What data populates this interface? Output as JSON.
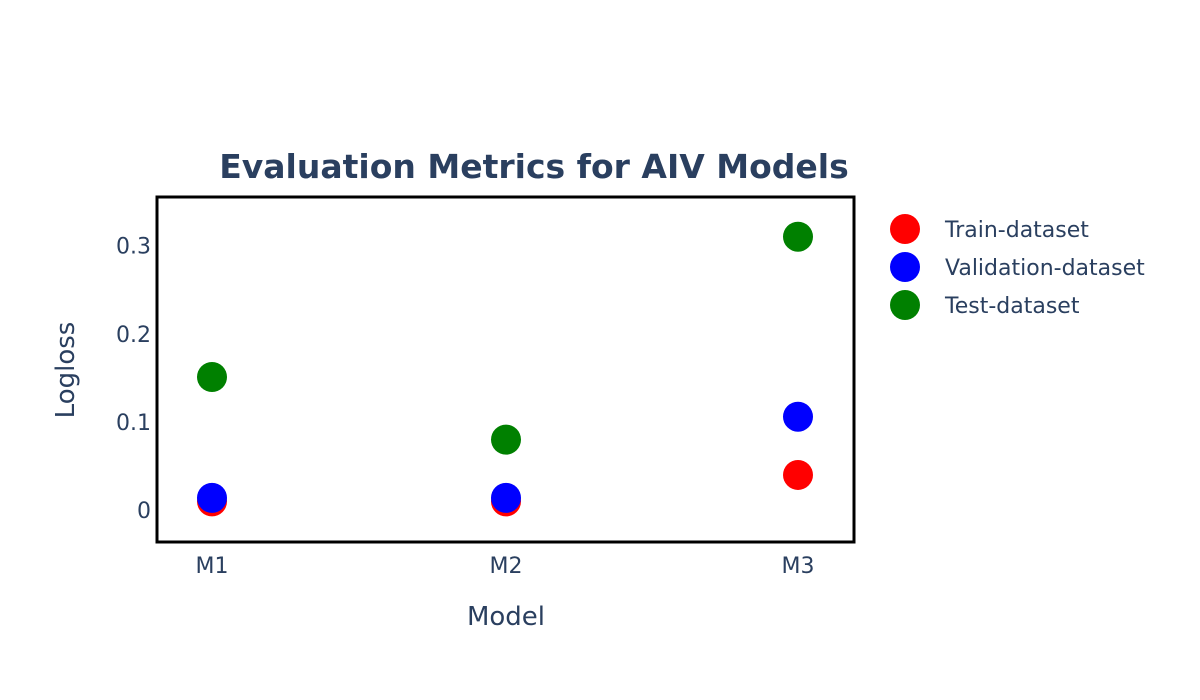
{
  "chart_data": {
    "type": "scatter",
    "title": "Evaluation Metrics for AIV Models",
    "xlabel": "Model",
    "ylabel": "Logloss",
    "categories": [
      "M1",
      "M2",
      "M3"
    ],
    "ylim": [
      -0.036,
      0.355
    ],
    "yticks": [
      0,
      0.1,
      0.2,
      0.3
    ],
    "ytick_labels": [
      "0",
      "0.1",
      "0.2",
      "0.3"
    ],
    "grid": false,
    "legend_position": "top-right",
    "series": [
      {
        "name": "Train-dataset",
        "color": "#ff0000",
        "values": [
          0.01,
          0.01,
          0.04
        ]
      },
      {
        "name": "Validation-dataset",
        "color": "#0000ff",
        "values": [
          0.014,
          0.014,
          0.106
        ]
      },
      {
        "name": "Test-dataset",
        "color": "#008000",
        "values": [
          0.151,
          0.08,
          0.31
        ]
      }
    ]
  }
}
